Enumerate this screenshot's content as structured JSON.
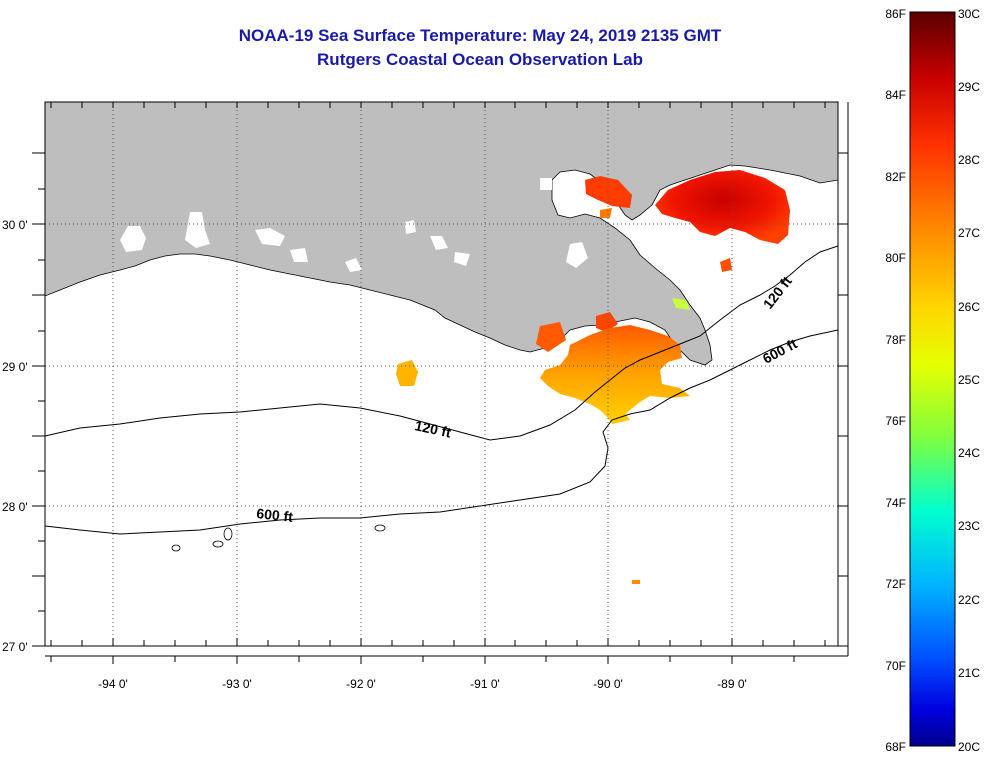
{
  "title": {
    "line1": "NOAA-19 Sea Surface Temperature:  May 24, 2019 2135 GMT",
    "line2": "Rutgers Coastal Ocean Observation Lab"
  },
  "map": {
    "lon_labels": [
      "-94 0'",
      "-93 0'",
      "-92 0'",
      "-91 0'",
      "-90 0'",
      "-89 0'"
    ],
    "lat_labels": [
      "30 0'",
      "29 0'",
      "28 0'",
      "27 0'"
    ],
    "contour_labels": [
      {
        "text": "120 ft",
        "which": "shelf-west"
      },
      {
        "text": "600 ft",
        "which": "slope-west"
      },
      {
        "text": "120 ft",
        "which": "shelf-east"
      },
      {
        "text": "600 ft",
        "which": "slope-east"
      }
    ],
    "colors": {
      "land": "#bebebe",
      "water": "#ffffff",
      "contour": "#000000",
      "grid": "#555555"
    }
  },
  "colorbar": {
    "fahrenheit_labels": [
      "86F",
      "84F",
      "82F",
      "80F",
      "78F",
      "76F",
      "74F",
      "72F",
      "70F",
      "68F"
    ],
    "celsius_labels": [
      "30C",
      "29C",
      "28C",
      "27C",
      "26C",
      "25C",
      "24C",
      "23C",
      "22C",
      "21C",
      "20C"
    ],
    "gradient_stops": [
      "#5a0000",
      "#c80000",
      "#ff3000",
      "#ff8c00",
      "#ffd400",
      "#e6ff00",
      "#7fff3f",
      "#00ffd0",
      "#00b4ff",
      "#0050ff",
      "#0000e0",
      "#00008c"
    ]
  }
}
